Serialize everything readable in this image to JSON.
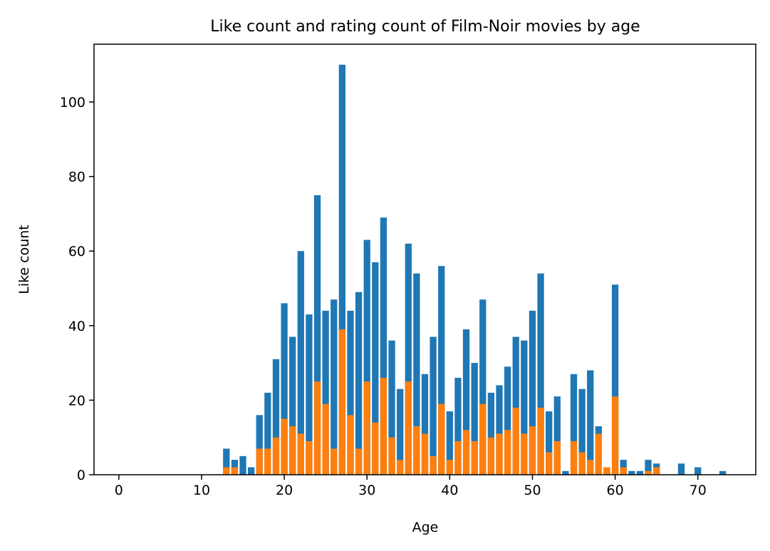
{
  "chart_data": {
    "type": "bar",
    "title": "Like count and rating count of Film-Noir movies by age",
    "xlabel": "Age",
    "ylabel": "Like count",
    "xlim": [
      -3,
      77
    ],
    "ylim": [
      0,
      115.5
    ],
    "xticks": [
      0,
      10,
      20,
      30,
      40,
      50,
      60,
      70
    ],
    "yticks": [
      0,
      20,
      40,
      60,
      80,
      100
    ],
    "grid": false,
    "legend": "none",
    "colors": {
      "series1": "#1f77b4",
      "series2": "#ff7f0e"
    },
    "x": [
      13,
      14,
      15,
      16,
      17,
      18,
      19,
      20,
      21,
      22,
      23,
      24,
      25,
      26,
      27,
      28,
      29,
      30,
      31,
      32,
      33,
      34,
      35,
      36,
      37,
      38,
      39,
      40,
      41,
      42,
      43,
      44,
      45,
      46,
      47,
      48,
      49,
      50,
      51,
      52,
      53,
      54,
      55,
      56,
      57,
      58,
      59,
      60,
      61,
      62,
      63,
      64,
      65,
      68,
      70,
      73
    ],
    "series": [
      {
        "values": [
          7,
          4,
          5,
          2,
          16,
          22,
          31,
          46,
          37,
          60,
          43,
          75,
          44,
          47,
          110,
          44,
          49,
          63,
          57,
          69,
          36,
          23,
          62,
          54,
          27,
          37,
          56,
          17,
          26,
          39,
          30,
          47,
          22,
          24,
          29,
          37,
          36,
          44,
          54,
          17,
          21,
          1,
          27,
          23,
          28,
          13,
          2,
          51,
          4,
          1,
          1,
          4,
          3,
          3,
          2,
          1
        ]
      },
      {
        "values": [
          2,
          2,
          0,
          0,
          7,
          7,
          10,
          15,
          13,
          11,
          9,
          25,
          19,
          7,
          39,
          16,
          7,
          25,
          14,
          26,
          10,
          4,
          25,
          13,
          11,
          5,
          19,
          4,
          9,
          12,
          9,
          19,
          10,
          11,
          12,
          18,
          11,
          13,
          18,
          6,
          9,
          0,
          9,
          6,
          4,
          11,
          2,
          21,
          2,
          0,
          0,
          1,
          2,
          0,
          0,
          0
        ]
      }
    ]
  }
}
